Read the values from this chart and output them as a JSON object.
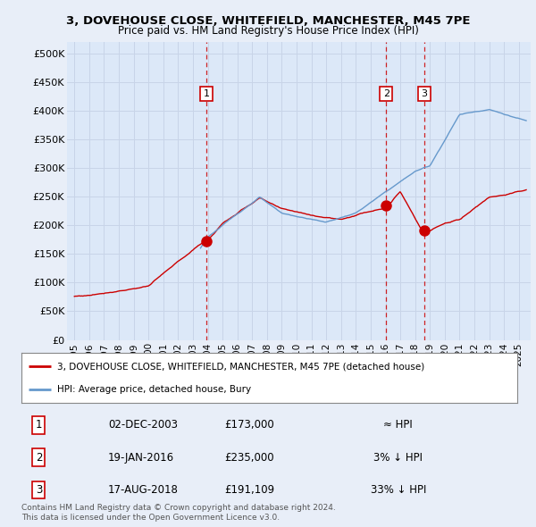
{
  "title1": "3, DOVEHOUSE CLOSE, WHITEFIELD, MANCHESTER, M45 7PE",
  "title2": "Price paid vs. HM Land Registry's House Price Index (HPI)",
  "ylabel_ticks": [
    "£0",
    "£50K",
    "£100K",
    "£150K",
    "£200K",
    "£250K",
    "£300K",
    "£350K",
    "£400K",
    "£450K",
    "£500K"
  ],
  "ytick_values": [
    0,
    50000,
    100000,
    150000,
    200000,
    250000,
    300000,
    350000,
    400000,
    450000,
    500000
  ],
  "ylim": [
    0,
    520000
  ],
  "xlim_start": 1994.5,
  "xlim_end": 2025.8,
  "xtick_years": [
    1995,
    1996,
    1997,
    1998,
    1999,
    2000,
    2001,
    2002,
    2003,
    2004,
    2005,
    2006,
    2007,
    2008,
    2009,
    2010,
    2011,
    2012,
    2013,
    2014,
    2015,
    2016,
    2017,
    2018,
    2019,
    2020,
    2021,
    2022,
    2023,
    2024,
    2025
  ],
  "hpi_color": "#6699cc",
  "sale_color": "#cc0000",
  "vline_color": "#cc0000",
  "grid_color": "#c8d4e8",
  "bg_color": "#e8eef8",
  "plot_bg": "#dce8f8",
  "sale_points": [
    {
      "year": 2003.92,
      "price": 173000,
      "label": "1"
    },
    {
      "year": 2016.05,
      "price": 235000,
      "label": "2"
    },
    {
      "year": 2018.63,
      "price": 191109,
      "label": "3"
    }
  ],
  "table_rows": [
    {
      "num": "1",
      "date": "02-DEC-2003",
      "price": "£173,000",
      "rel": "≈ HPI"
    },
    {
      "num": "2",
      "date": "19-JAN-2016",
      "price": "£235,000",
      "rel": "3% ↓ HPI"
    },
    {
      "num": "3",
      "date": "17-AUG-2018",
      "price": "£191,109",
      "rel": "33% ↓ HPI"
    }
  ],
  "legend_line1": "3, DOVEHOUSE CLOSE, WHITEFIELD, MANCHESTER, M45 7PE (detached house)",
  "legend_line2": "HPI: Average price, detached house, Bury",
  "footer1": "Contains HM Land Registry data © Crown copyright and database right 2024.",
  "footer2": "This data is licensed under the Open Government Licence v3.0."
}
